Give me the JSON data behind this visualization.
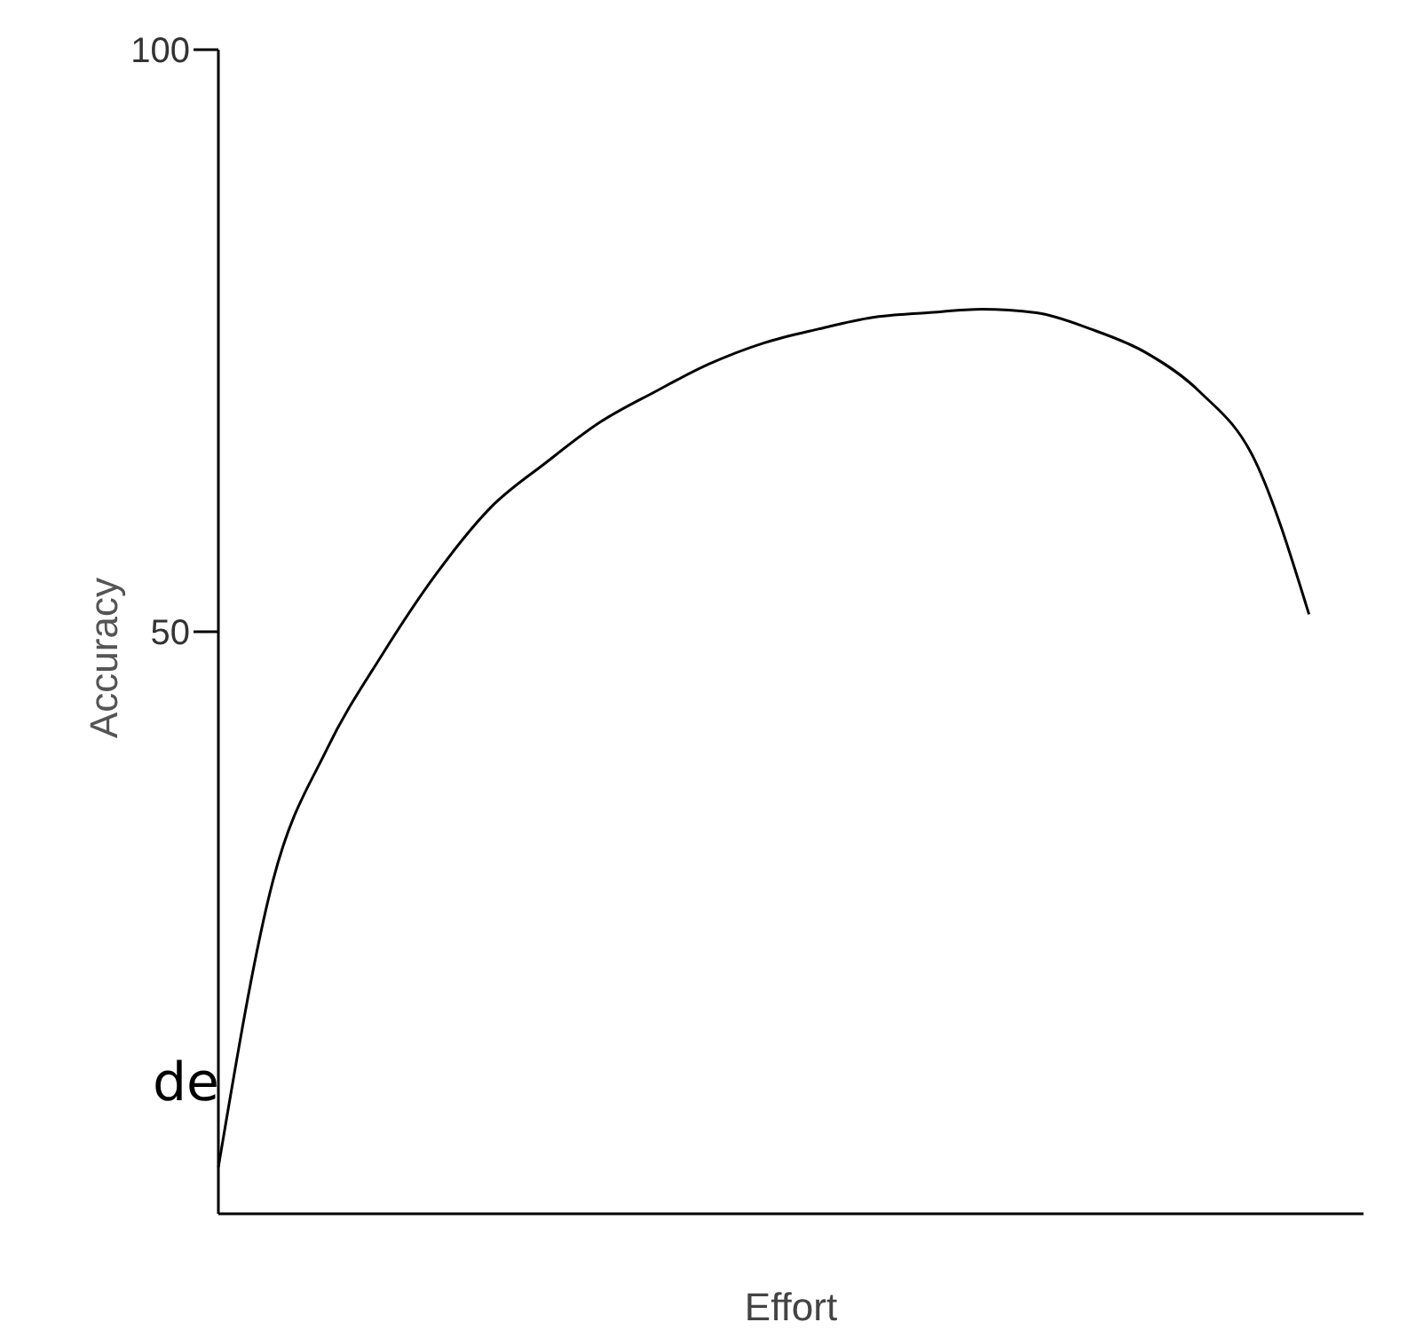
{
  "chart_data": {
    "type": "line",
    "xlabel": "Effort",
    "ylabel": "Accuracy",
    "annotations": [
      "de"
    ],
    "categories": [
      null,
      null,
      null,
      null,
      null,
      null,
      null,
      null,
      null,
      null,
      null,
      null,
      null,
      null,
      null,
      null,
      null,
      null,
      null,
      null,
      null
    ],
    "series": [
      {
        "color": "#000000",
        "values": [
          4,
          28.6,
          40,
          48,
          55,
          60.7,
          64.5,
          68,
          70.6,
          73,
          74.8,
          76,
          77,
          77.4,
          77.7,
          77.4,
          76,
          74,
          70.6,
          64.8,
          51.5
        ]
      }
    ],
    "ylim": [
      0,
      100
    ],
    "yticks": [
      50,
      100
    ],
    "grid": false,
    "legend": false,
    "marker": "none",
    "line_style": "solid",
    "tick_labels": "y"
  }
}
